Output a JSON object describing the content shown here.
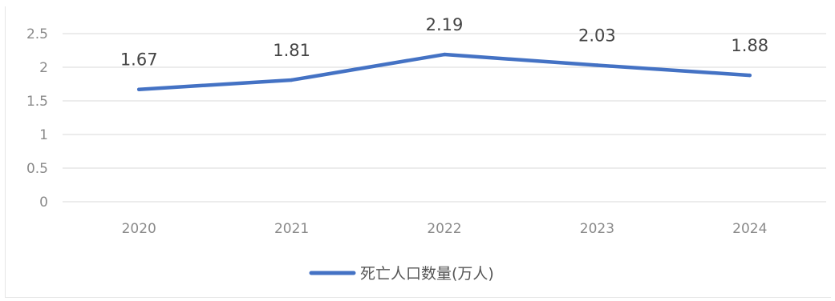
{
  "chart_data": {
    "type": "line",
    "categories": [
      "2020",
      "2021",
      "2022",
      "2023",
      "2024"
    ],
    "series": [
      {
        "name": "死亡人口数量(万人)",
        "values": [
          1.67,
          1.81,
          2.19,
          2.03,
          1.88
        ],
        "color": "#4472C4"
      }
    ],
    "ylim": [
      0,
      2.5
    ],
    "yticks": [
      "0",
      "0.5",
      "1",
      "1.5",
      "2",
      "2.5"
    ],
    "data_labels": [
      "1.67",
      "1.81",
      "2.19",
      "2.03",
      "1.88"
    ],
    "grid": true,
    "legend_position": "bottom"
  }
}
